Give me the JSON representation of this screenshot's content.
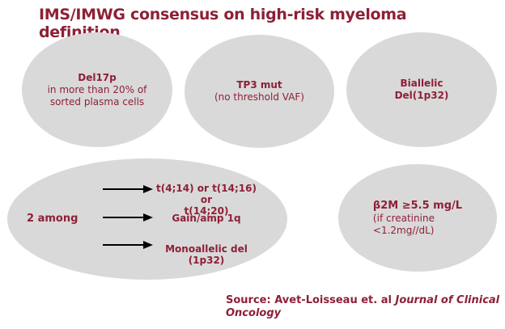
{
  "title": "IMS/IMWG consensus on high-risk myeloma definition",
  "ovals": {
    "del17p": {
      "heading": "Del17p",
      "line1": "in more than 20% of",
      "line2": "sorted plasma cells"
    },
    "tp3": {
      "heading": "TP3 mut",
      "line1": "(no threshold VAF)"
    },
    "biallelic": {
      "line1": "Biallelic",
      "line2": "Del(1p32)"
    },
    "among": {
      "label": "2 among",
      "items": [
        {
          "line1": "t(4;14) or t(14;16) or",
          "line2": "t(14;20)"
        },
        {
          "line1": "Gain/amp 1q"
        },
        {
          "line1": "Monoallelic del",
          "line2": "(1p32)"
        }
      ]
    },
    "b2m": {
      "main": "β2M ≥5.5 mg/L",
      "line1": "(if creatinine",
      "line2": "<1.2mg//dL)"
    }
  },
  "source": {
    "prefix": "Source: Avet-Loisseau et. al ",
    "journal": "Journal of Clinical Oncology"
  },
  "colors": {
    "accent": "#8e2036",
    "oval": "#d9d9d9"
  }
}
